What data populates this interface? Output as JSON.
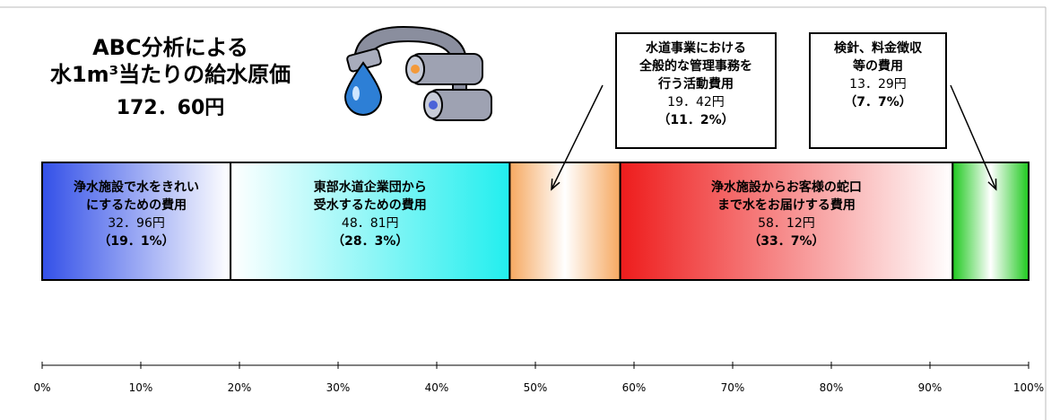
{
  "chart_data": {
    "type": "stacked-bar",
    "title": "ABC分析による\n水1m³当たりの給水原価",
    "total_label": "172．60円",
    "categories": [
      "浄水施設で水をきれい\nにするための費用",
      "東部水道企業団から\n受水するための費用",
      "水道事業における\n全般的な管理事務を\n行う活動費用",
      "浄水施設からお客様の蛇口\nまで水をお届けする費用",
      "検針、料金徴収\n等の費用"
    ],
    "amount_labels": [
      "32．96円",
      "48．81円",
      "19．42円",
      "58．12円",
      "13．29円"
    ],
    "values": [
      19.1,
      28.3,
      11.2,
      33.7,
      7.7
    ],
    "value_labels": [
      "（19．1%）",
      "（28．3%）",
      "（11．2%）",
      "（33．7%）",
      "（7．7%）"
    ],
    "colors": [
      "#3350e8",
      "#22eeee",
      "#f6a860",
      "#ee1c1c",
      "#1ec81e"
    ],
    "xlim": [
      0,
      100
    ],
    "xticks": [
      {
        "value": 0,
        "label": "0%"
      },
      {
        "value": 10,
        "label": "10%"
      },
      {
        "value": 20,
        "label": "20%"
      },
      {
        "value": 30,
        "label": "30%"
      },
      {
        "value": 40,
        "label": "40%"
      },
      {
        "value": 50,
        "label": "50%"
      },
      {
        "value": 60,
        "label": "60%"
      },
      {
        "value": 70,
        "label": "70%"
      },
      {
        "value": 80,
        "label": "80%"
      },
      {
        "value": 90,
        "label": "90%"
      },
      {
        "value": 100,
        "label": "100%"
      }
    ]
  }
}
